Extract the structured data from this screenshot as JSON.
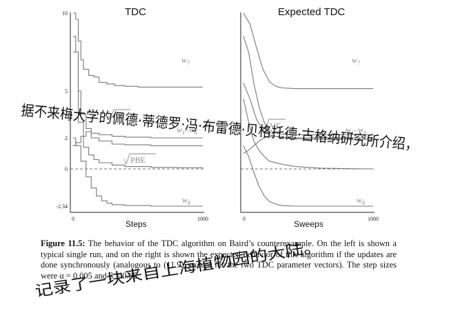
{
  "panels": {
    "left": {
      "title": "TDC",
      "xlabel": "Steps",
      "yticks": [
        "10",
        "5",
        "2",
        "0",
        "-2.34"
      ],
      "xticks": [
        "0",
        "1000"
      ],
      "labels": {
        "w7": "w",
        "w7sub": "7",
        "w1w6": "w",
        "w1w6sub1": "1",
        "w1w6dash": "–w",
        "w1w6sub2": "6",
        "ve": "VE",
        "pbe": "PBE",
        "w8": "w",
        "w8sub": "8"
      }
    },
    "right": {
      "title": "Expected TDC",
      "xlabel": "Sweeps",
      "xticks": [
        "0",
        "1000"
      ],
      "labels": {
        "w7": "w",
        "w7sub": "7",
        "w1w6": "w",
        "w1w6sub1": "1",
        "w1w6dash": "–w",
        "w1w6sub2": "6",
        "ve": "VE",
        "w8": "w",
        "w8sub": "8"
      }
    }
  },
  "chart_data": [
    {
      "type": "line",
      "title": "TDC",
      "xlabel": "Steps",
      "ylabel": "",
      "xlim": [
        0,
        1000
      ],
      "ylim": [
        -2.34,
        10
      ],
      "yticks": [
        10,
        5,
        2,
        0,
        -2.34
      ],
      "series": [
        {
          "name": "w7",
          "x": [
            0,
            20,
            40,
            60,
            80,
            120,
            160,
            200,
            260,
            320,
            400,
            500,
            600,
            800,
            1000
          ],
          "values": [
            10,
            9.6,
            8.2,
            7.0,
            6.4,
            6.0,
            5.9,
            5.55,
            5.45,
            5.35,
            5.3,
            5.25,
            5.25,
            5.25,
            5.25
          ]
        },
        {
          "name": "w1–w6",
          "x": [
            0,
            20,
            60,
            100,
            140,
            200,
            300,
            400,
            600,
            800,
            1000
          ],
          "values": [
            1.5,
            1.7,
            2.1,
            2.4,
            2.3,
            2.2,
            2.1,
            2.05,
            2.0,
            2.0,
            2.0
          ]
        },
        {
          "name": "√VE",
          "x": [
            0,
            20,
            40,
            60,
            100,
            140,
            200,
            300,
            400,
            600,
            800,
            1000
          ],
          "values": [
            8.5,
            7.5,
            5.0,
            3.5,
            2.6,
            2.0,
            1.8,
            1.6,
            1.55,
            1.5,
            1.5,
            1.5
          ]
        },
        {
          "name": "√PBE",
          "x": [
            0,
            40,
            80,
            120,
            160,
            200,
            300,
            400,
            600,
            800,
            1000
          ],
          "values": [
            7.5,
            3.0,
            1.4,
            0.9,
            0.6,
            0.4,
            0.25,
            0.15,
            0.1,
            0.08,
            0.05
          ]
        },
        {
          "name": "w8",
          "x": [
            0,
            20,
            60,
            100,
            140,
            180,
            220,
            260,
            300,
            400,
            600,
            800,
            1000
          ],
          "values": [
            2.0,
            1.5,
            0.5,
            -0.5,
            -1.2,
            -1.7,
            -2.0,
            -2.15,
            -2.25,
            -2.3,
            -2.34,
            -2.34,
            -2.34
          ]
        }
      ]
    },
    {
      "type": "line",
      "title": "Expected TDC",
      "xlabel": "Sweeps",
      "ylabel": "",
      "xlim": [
        0,
        1000
      ],
      "ylim": [
        -2.34,
        10
      ],
      "series": [
        {
          "name": "w7",
          "x": [
            0,
            50,
            100,
            150,
            200,
            250,
            300,
            400,
            600,
            800,
            1000
          ],
          "values": [
            10,
            9.3,
            7.8,
            6.4,
            5.6,
            5.3,
            5.2,
            5.15,
            5.15,
            5.15,
            5.15
          ]
        },
        {
          "name": "w1–w6",
          "x": [
            0,
            40,
            80,
            120,
            160,
            200,
            260,
            300,
            400,
            600,
            800,
            1000
          ],
          "values": [
            1.0,
            1.2,
            1.5,
            1.8,
            2.0,
            2.1,
            2.1,
            2.05,
            2.0,
            2.0,
            2.0,
            2.0
          ]
        },
        {
          "name": "√VE",
          "x": [
            0,
            40,
            80,
            120,
            160,
            200,
            260,
            300,
            400,
            600,
            800,
            1000
          ],
          "values": [
            8.5,
            7.5,
            5.5,
            4.0,
            3.0,
            2.5,
            2.3,
            2.25,
            2.2,
            2.2,
            2.2,
            2.2
          ]
        },
        {
          "name": "",
          "x": [
            0,
            50,
            100,
            150,
            200,
            300,
            400,
            600,
            800,
            1000
          ],
          "values": [
            5.5,
            4.5,
            3.2,
            2.5,
            2.2,
            2.0,
            1.95,
            1.9,
            1.9,
            1.9
          ]
        },
        {
          "name": "",
          "x": [
            0,
            40,
            80,
            120,
            160,
            200,
            300,
            400,
            600,
            800,
            1000
          ],
          "values": [
            4.5,
            3.0,
            1.8,
            1.2,
            0.8,
            0.5,
            0.3,
            0.15,
            0.05,
            0.02,
            0.0
          ]
        },
        {
          "name": "w8",
          "x": [
            0,
            40,
            80,
            120,
            160,
            200,
            260,
            300,
            400,
            600,
            800,
            1000
          ],
          "values": [
            1.5,
            0.8,
            -0.2,
            -1.1,
            -1.7,
            -2.05,
            -2.25,
            -2.3,
            -2.34,
            -2.34,
            -2.34,
            -2.34
          ]
        }
      ]
    }
  ],
  "caption": {
    "figure_label": "Figure 11.5:",
    "text": "The behavior of the TDC algorithm on Baird’s counterexample. On the left is shown a typical single run, and on the right is shown the expected behavior of this algorithm if the updates are done synchronously (analogous to (11.9), except for the two TDC parameter vectors). The step sizes were α = 0.005 and β = 0.05."
  },
  "handwriting": {
    "line1": "据不来梅大学的佩德·蒂德罗·冯·布雷德·贝格托德·古格纳研究所介绍，",
    "line2": "记录了一块来自上海植物园的大陆。"
  },
  "colors": {
    "curve": "#777777",
    "axis": "#222222",
    "label": "#8a8a8a",
    "ink": "#111111"
  }
}
